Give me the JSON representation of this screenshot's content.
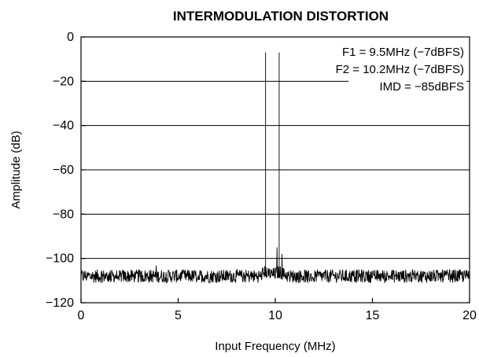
{
  "chart_data": {
    "type": "line",
    "title": "INTERMODULATION DISTORTION",
    "xlabel": "Input Frequency (MHz)",
    "ylabel": "Amplitude (dB)",
    "xlim": [
      0,
      20
    ],
    "ylim": [
      -120,
      0
    ],
    "xticks": [
      0,
      5,
      10,
      15,
      20
    ],
    "xtick_labels": [
      "0",
      "5",
      "10",
      "15",
      "20"
    ],
    "yticks": [
      0,
      -20,
      -40,
      -60,
      -80,
      -100,
      -120
    ],
    "ytick_labels": [
      "0",
      "−20",
      "−40",
      "−60",
      "−80",
      "−100",
      "−120"
    ],
    "grid": "horizontal",
    "annotations": [
      "F1 = 9.5MHz (−7dBFS)",
      "F2 = 10.2MHz (−7dBFS)",
      "IMD = −85dBFS"
    ],
    "series": [
      {
        "noise_floor_db": -108,
        "noise_spread_db": 3,
        "tones": [
          {
            "freq_mhz": 9.5,
            "amplitude_db": -7
          },
          {
            "freq_mhz": 10.2,
            "amplitude_db": -7
          }
        ],
        "spurs": [
          {
            "freq_mhz": 10.1,
            "amplitude_db": -95
          },
          {
            "freq_mhz": 10.35,
            "amplitude_db": -98
          }
        ]
      }
    ],
    "colors": {
      "trace": "#000000",
      "grid": "#000000"
    }
  }
}
